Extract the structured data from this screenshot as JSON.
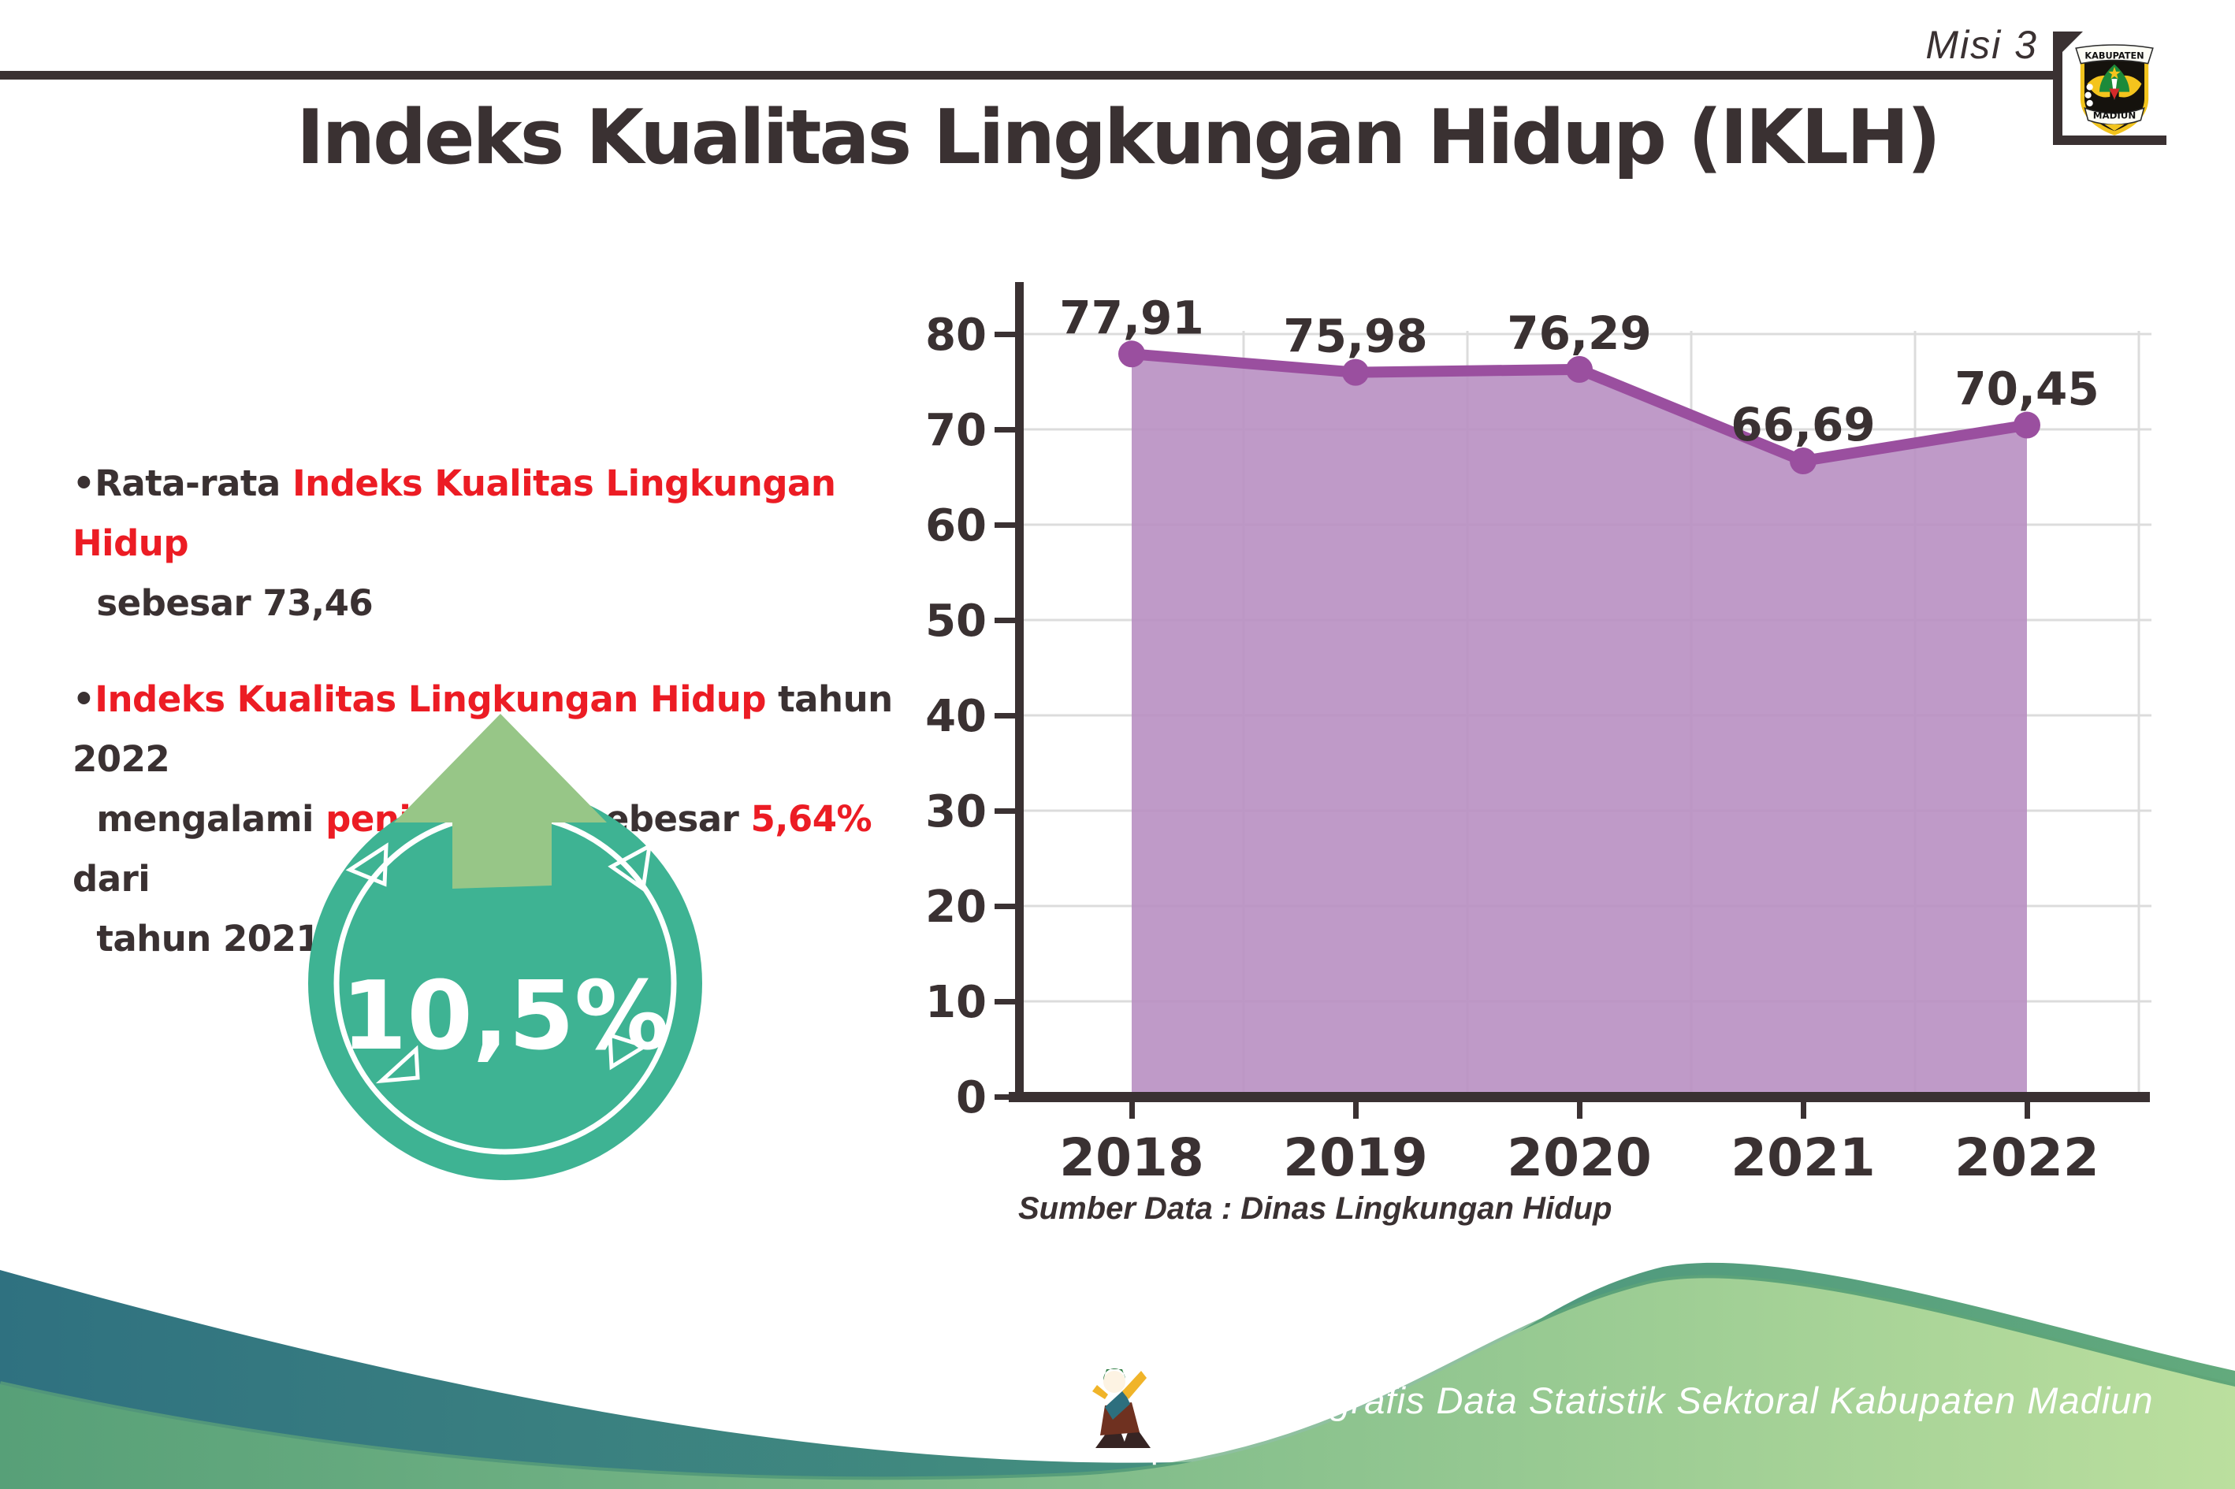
{
  "theme": {
    "dark": "#3a3132",
    "red": "#ec1c24",
    "white": "#ffffff"
  },
  "header": {
    "misi_label": "Misi 3",
    "logo": {
      "top_text": "KABUPATEN",
      "bottom_text": "MADIUN"
    }
  },
  "title": "Indeks Kualitas Lingkungan Hidup (IKLH)",
  "bullets": [
    {
      "segments": [
        {
          "text": "•Rata-rata ",
          "color": "dark"
        },
        {
          "text": "Indeks Kualitas Lingkungan Hidup",
          "color": "red"
        },
        {
          "break": true
        },
        {
          "text": "  sebesar 73,46",
          "color": "dark"
        }
      ]
    },
    {
      "segments": [
        {
          "text": "•",
          "color": "dark"
        },
        {
          "text": "Indeks Kualitas Lingkungan Hidup",
          "color": "red"
        },
        {
          "text": " tahun 2022",
          "color": "dark"
        },
        {
          "break": true
        },
        {
          "text": "  mengalami ",
          "color": "dark"
        },
        {
          "text": "peningkatan",
          "color": "red"
        },
        {
          "text": " sebesar ",
          "color": "dark"
        },
        {
          "text": "5,64%",
          "color": "red"
        },
        {
          "text": " dari",
          "color": "dark"
        },
        {
          "break": true
        },
        {
          "text": "  tahun 2021",
          "color": "dark"
        }
      ]
    }
  ],
  "badge": {
    "value_label": "10,5%",
    "circle_color": "#3eb393",
    "ring_color": "#ffffff",
    "arrow_color": "#97c687",
    "arrow_outline": "#3b4668"
  },
  "chart_data": {
    "type": "area",
    "categories": [
      "2018",
      "2019",
      "2020",
      "2021",
      "2022"
    ],
    "values": [
      77.91,
      75.98,
      76.29,
      66.69,
      70.45
    ],
    "point_labels": [
      "77,91",
      "75,98",
      "76,29",
      "66,69",
      "70,45"
    ],
    "title": "",
    "xlabel": "",
    "ylabel": "",
    "ylim": [
      0,
      80
    ],
    "ytick_step": 10,
    "grid": true,
    "legend": "none",
    "colors": {
      "area_fill": "#b88fc2",
      "line": "#9a4f9f",
      "marker": "#9a4f9f",
      "grid": "#dcdcdc",
      "axis": "#3a3132",
      "text": "#3a3132"
    }
  },
  "source_note": "Sumber Data : Dinas Lingkungan Hidup",
  "footer": {
    "caption": "Media Infografis Data Statistik Sektoral Kabupaten Madiun |"
  }
}
